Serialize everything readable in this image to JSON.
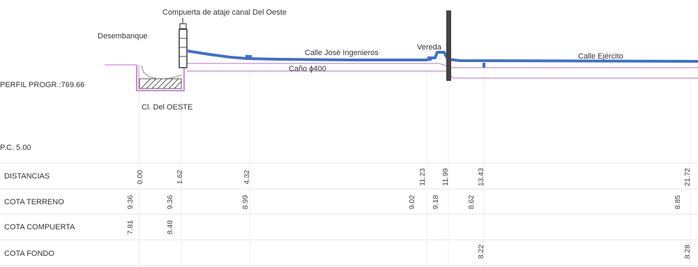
{
  "drawing": {
    "title_gate": "Compuerta de ataje  canal Del Oeste",
    "label_desembanque": "Desembanque",
    "label_canal": "Cl. Del OESTE",
    "label_calle_jose": "Calle José Ingenieros",
    "label_vereda": "Vereda",
    "label_calle_ejercito": "Calle Ejército",
    "label_cano": "Caño ϕ400",
    "perfil_progr": "PERFIL PROGR.:769.66",
    "plano_comparacion": "P.C. 5.00"
  },
  "table": {
    "rows": [
      {
        "label": "DISTANCIAS",
        "values": [
          "0.00",
          "1.62",
          "4.32",
          "11.23",
          "11.99",
          "13.43",
          "21.72"
        ]
      },
      {
        "label": "COTA TERRENO",
        "values": [
          "9.36",
          "9.36",
          "8.99",
          "9.02",
          "9.18",
          "8.62",
          "8.85"
        ]
      },
      {
        "label": "COTA COMPUERTA",
        "values": [
          "7.81",
          "8.48"
        ]
      },
      {
        "label": "COTA FONDO",
        "values": [
          "8.22",
          "8.28"
        ]
      }
    ]
  },
  "colors": {
    "ground_line": "#3f6fcf",
    "pipe_line": "#c88ad8",
    "structure": "#444444",
    "grid": "#e6e6e6",
    "text": "#333333"
  }
}
